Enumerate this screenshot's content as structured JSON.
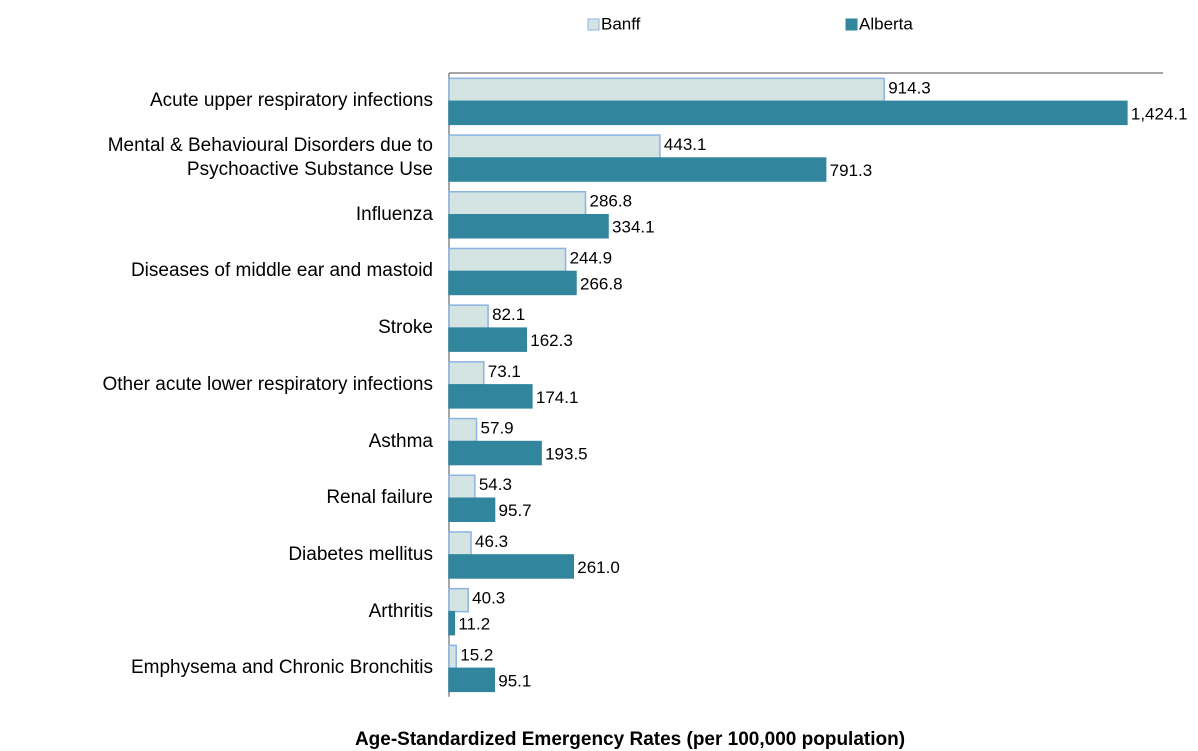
{
  "chart_data": {
    "type": "barh",
    "x_label": "Age-Standardized Emergency Rates (per 100,000 population)",
    "categories": [
      "Acute upper respiratory infections",
      "Mental & Behavioural Disorders due to\nPsychoactive Substance Use",
      "Influenza",
      "Diseases of middle ear and mastoid",
      "Stroke",
      "Other acute lower respiratory infections",
      "Asthma",
      "Renal failure",
      "Diabetes mellitus",
      "Arthritis",
      "Emphysema and Chronic Bronchitis"
    ],
    "series": [
      {
        "name": "Banff",
        "color": "#d3e4e3",
        "edge": "#8db3e2",
        "values": [
          914.3,
          443.1,
          286.8,
          244.9,
          82.1,
          73.1,
          57.9,
          54.3,
          46.3,
          40.3,
          15.2
        ],
        "value_labels": [
          "914.3",
          "443.1",
          "286.8",
          "244.9",
          "82.1",
          "73.1",
          "57.9",
          "54.3",
          "46.3",
          "40.3",
          "15.2"
        ]
      },
      {
        "name": "Alberta",
        "color": "#31859c",
        "edge": "#31859c",
        "values": [
          1424.1,
          791.3,
          334.1,
          266.8,
          162.3,
          174.1,
          193.5,
          95.7,
          261.0,
          11.2,
          95.1
        ],
        "value_labels": [
          "1,424.1",
          "791.3",
          "334.1",
          "266.8",
          "162.3",
          "174.1",
          "193.5",
          "95.7",
          "261.0",
          "11.2",
          "95.1"
        ]
      }
    ],
    "xlim": [
      0,
      1500
    ],
    "legend": "top"
  }
}
